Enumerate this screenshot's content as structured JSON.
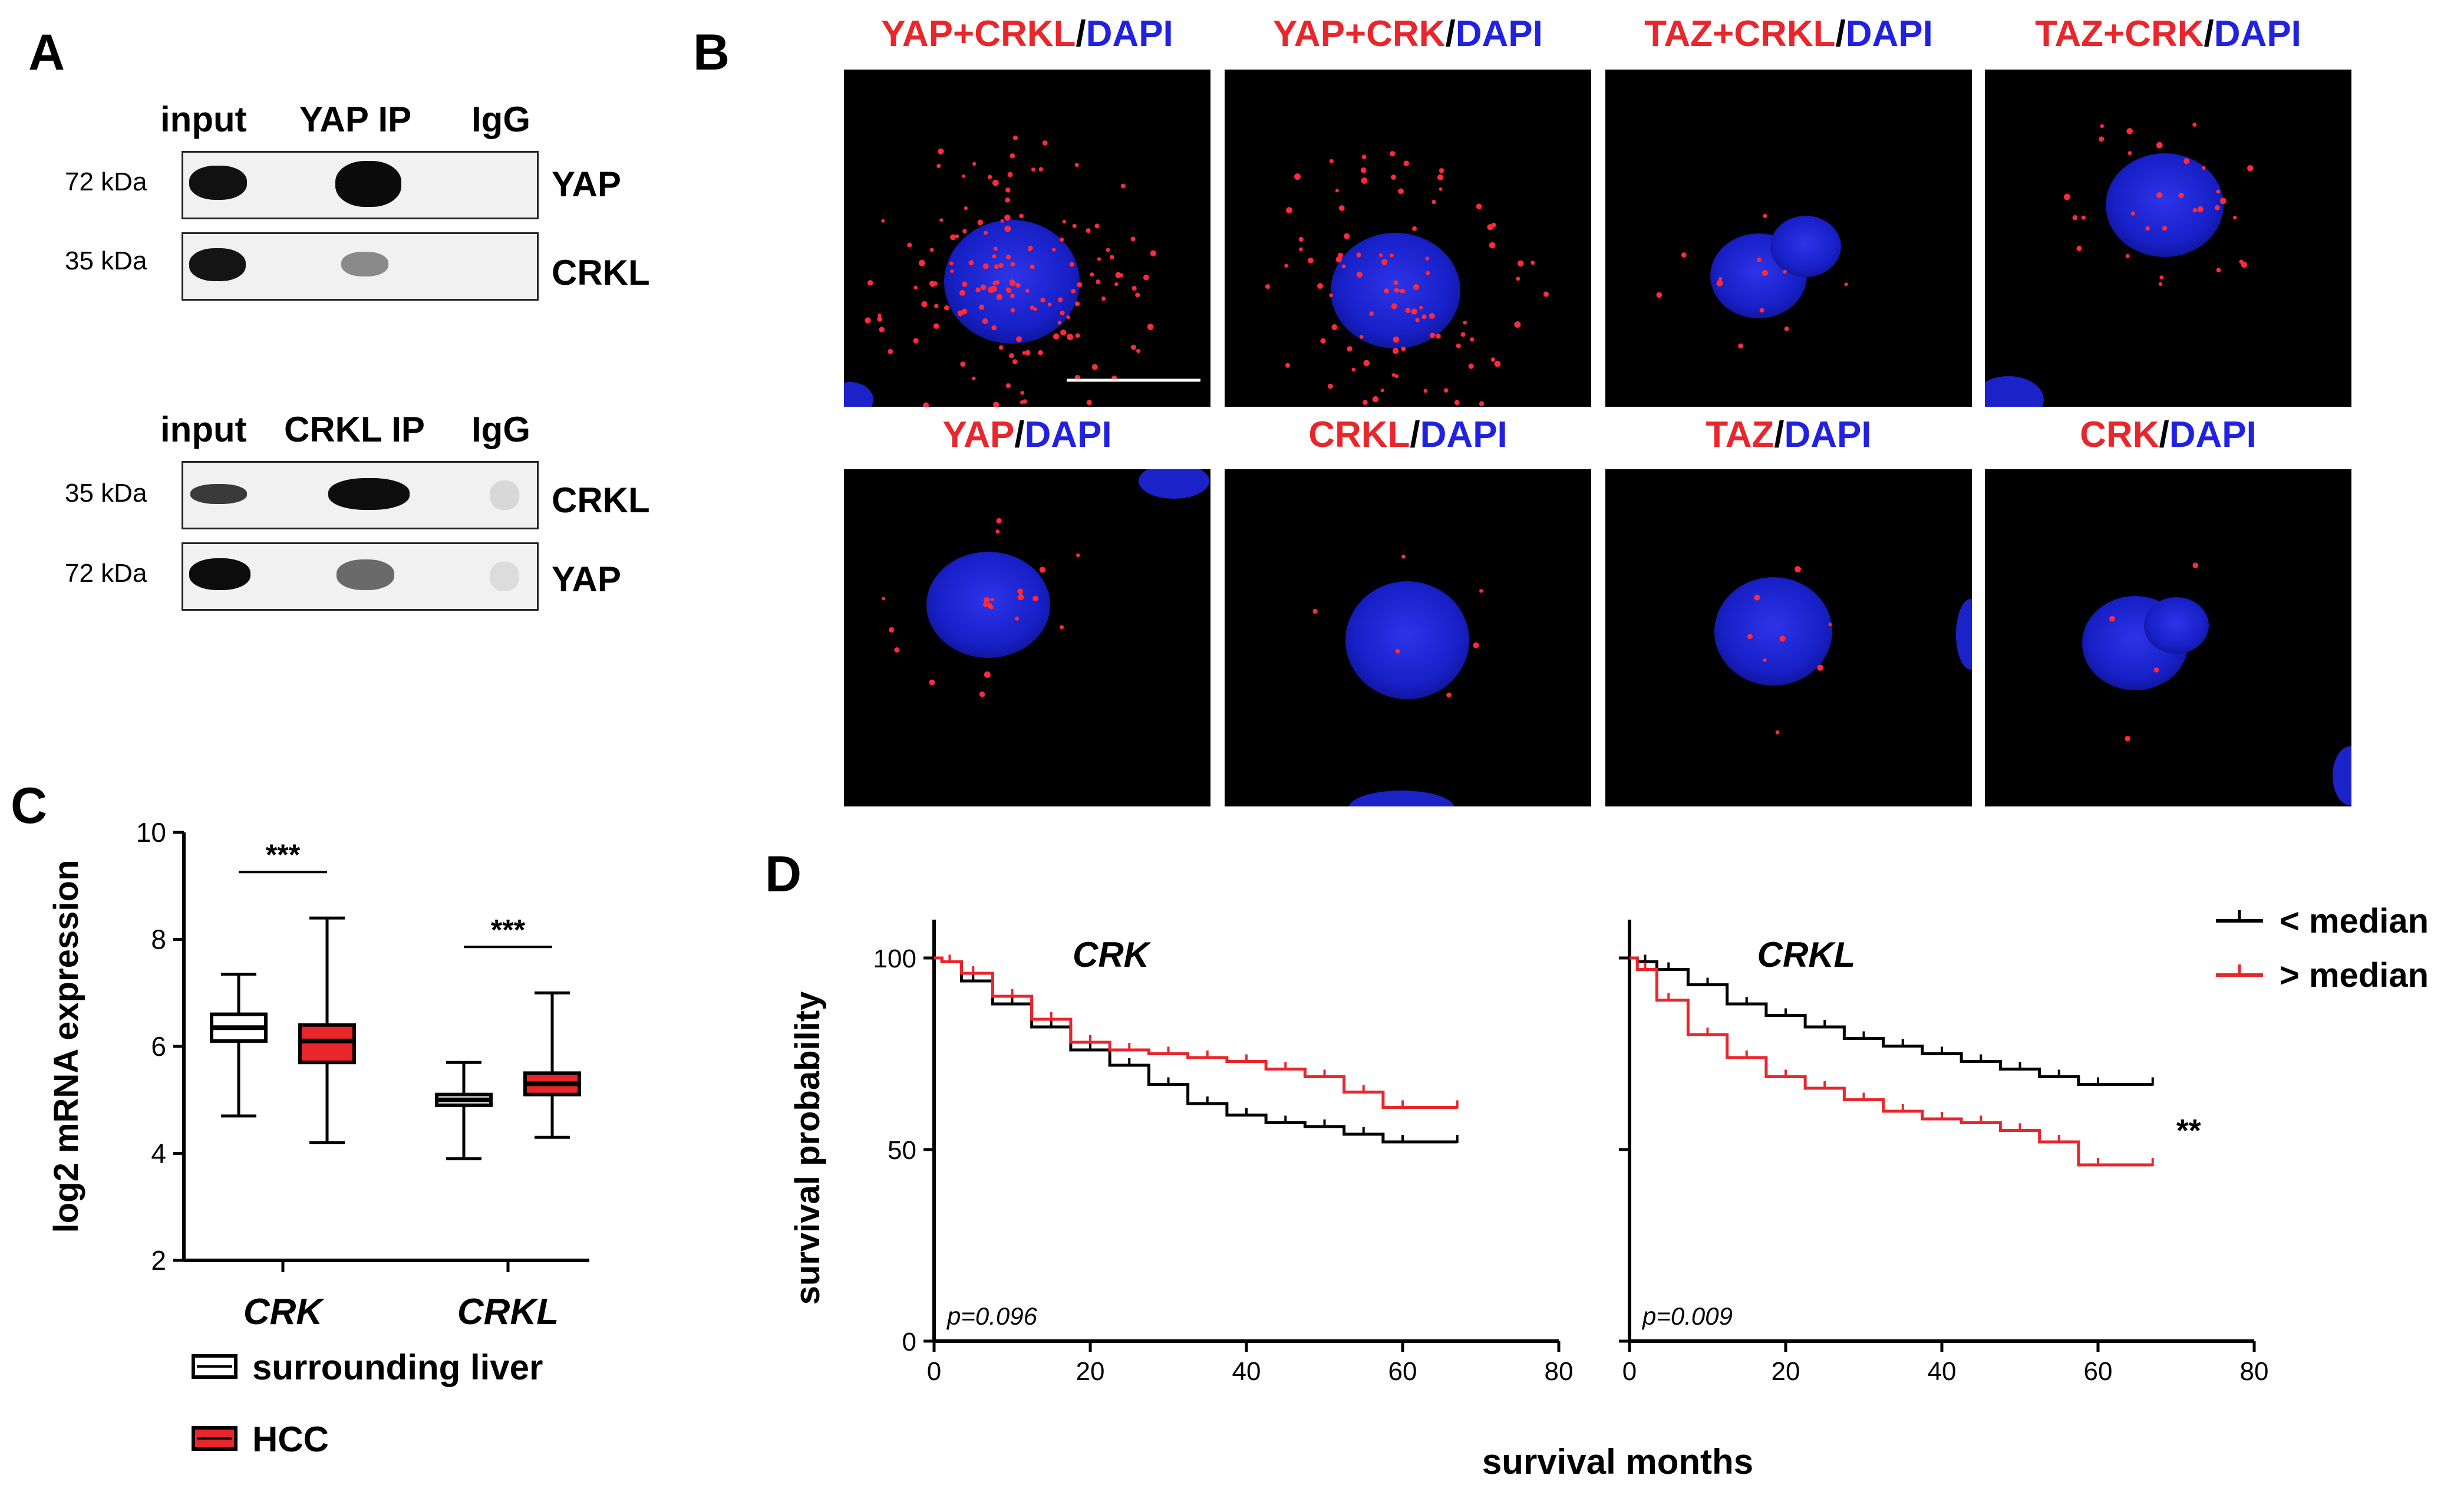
{
  "panels": {
    "A": {
      "label": "A",
      "blots": [
        {
          "lanes": [
            "input",
            "YAP IP",
            "IgG"
          ],
          "rows": [
            {
              "kda": "72 kDa",
              "protein": "YAP"
            },
            {
              "kda": "35 kDa",
              "protein": "CRKL"
            }
          ]
        },
        {
          "lanes": [
            "input",
            "CRKL IP",
            "IgG"
          ],
          "rows": [
            {
              "kda": "35 kDa",
              "protein": "CRKL"
            },
            {
              "kda": "72 kDa",
              "protein": "YAP"
            }
          ]
        }
      ]
    },
    "B": {
      "label": "B",
      "images": [
        {
          "red": "YAP+CRKL",
          "sep": "/",
          "blue": "DAPI"
        },
        {
          "red": "YAP+CRK",
          "sep": "/",
          "blue": "DAPI"
        },
        {
          "red": "TAZ+CRKL",
          "sep": "/",
          "blue": "DAPI"
        },
        {
          "red": "TAZ+CRK",
          "sep": "/",
          "blue": "DAPI"
        },
        {
          "red": "YAP",
          "sep": "/",
          "blue": "DAPI"
        },
        {
          "red": "CRKL",
          "sep": "/",
          "blue": "DAPI"
        },
        {
          "red": "TAZ",
          "sep": "/",
          "blue": "DAPI"
        },
        {
          "red": "CRK",
          "sep": "/",
          "blue": "DAPI"
        }
      ],
      "colors": {
        "red": "#e8262c",
        "blue": "#2121e0"
      }
    },
    "C": {
      "label": "C"
    },
    "D": {
      "label": "D"
    }
  },
  "chart_data": [
    {
      "type": "box",
      "ylabel": "log2 mRNA expression",
      "ylim": [
        2,
        10
      ],
      "yticks": [
        2,
        4,
        6,
        8,
        10
      ],
      "categories": [
        "CRK",
        "CRKL"
      ],
      "series": [
        {
          "name": "surrounding liver",
          "color": "#ffffff",
          "boxes": [
            {
              "min": 4.7,
              "q1": 6.1,
              "median": 6.35,
              "q3": 6.6,
              "max": 7.35
            },
            {
              "min": 3.9,
              "q1": 4.9,
              "median": 5.0,
              "q3": 5.1,
              "max": 5.7
            }
          ]
        },
        {
          "name": "HCC",
          "color": "#e8262c",
          "boxes": [
            {
              "min": 4.2,
              "q1": 5.7,
              "median": 6.1,
              "q3": 6.4,
              "max": 8.4
            },
            {
              "min": 4.3,
              "q1": 5.1,
              "median": 5.3,
              "q3": 5.5,
              "max": 7.0
            }
          ]
        }
      ],
      "significance": [
        "***",
        "***"
      ]
    },
    {
      "type": "line",
      "kind": "kaplan-meier",
      "panels": [
        {
          "title": "CRK",
          "pvalue": "p=0.096",
          "annotation": "",
          "series": [
            {
              "name": "< median",
              "color": "#000000",
              "x": [
                0,
                2,
                5,
                10,
                15,
                20,
                25,
                30,
                35,
                40,
                45,
                50,
                55,
                60,
                67
              ],
              "y": [
                100,
                99,
                94,
                88,
                82,
                76,
                72,
                67,
                62,
                59,
                57,
                56,
                54,
                52,
                52
              ]
            },
            {
              "name": "> median",
              "color": "#e8262c",
              "x": [
                0,
                2,
                5,
                10,
                15,
                20,
                25,
                30,
                35,
                40,
                45,
                50,
                55,
                60,
                67
              ],
              "y": [
                100,
                99,
                96,
                90,
                84,
                78,
                76,
                75,
                74,
                73,
                71,
                69,
                65,
                61,
                61
              ]
            }
          ]
        },
        {
          "title": "CRKL",
          "pvalue": "p=0.009",
          "annotation": "**",
          "series": [
            {
              "name": "< median",
              "color": "#000000",
              "x": [
                0,
                2,
                5,
                10,
                15,
                20,
                25,
                30,
                35,
                40,
                45,
                50,
                55,
                60,
                67
              ],
              "y": [
                100,
                99,
                97,
                93,
                88,
                85,
                82,
                79,
                77,
                75,
                73,
                71,
                69,
                67,
                67
              ]
            },
            {
              "name": "> median",
              "color": "#e8262c",
              "x": [
                0,
                2,
                5,
                10,
                15,
                20,
                25,
                30,
                35,
                40,
                45,
                50,
                55,
                60,
                67
              ],
              "y": [
                100,
                97,
                89,
                80,
                74,
                69,
                66,
                63,
                60,
                58,
                57,
                55,
                52,
                46,
                46
              ]
            }
          ]
        }
      ],
      "xlabel": "survival months",
      "ylabel": "survival probability",
      "xlim": [
        0,
        80
      ],
      "xticks": [
        0,
        20,
        40,
        60,
        80
      ],
      "ylim": [
        0,
        100
      ],
      "yticks": [
        0,
        50,
        100
      ],
      "legend": {
        "position": "top-right",
        "entries": [
          "< median",
          "> median"
        ]
      }
    }
  ]
}
